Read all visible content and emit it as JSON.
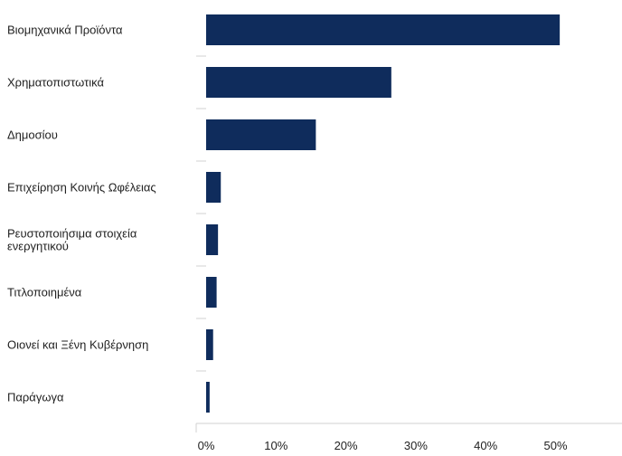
{
  "chart_data": {
    "type": "bar",
    "orientation": "horizontal",
    "categories": [
      "Βιομηχανικά Προϊόντα",
      "Χρηματοπιστωτικά",
      "Δημοσίου",
      "Επιχείρηση Κοινής Ωφέλειας",
      "Ρευστοποιήσιμα στοιχεία ενεργητικού",
      "Τιτλοποιημένα",
      "Οιονεί και Ξένη Κυβέρνηση",
      "Παράγωγα"
    ],
    "category_lines": [
      [
        "Βιομηχανικά Προϊόντα"
      ],
      [
        "Χρηματοπιστωτικά"
      ],
      [
        "Δημοσίου"
      ],
      [
        "Επιχείρηση Κοινής Ωφέλειας"
      ],
      [
        "Ρευστοποιήσιμα στοιχεία",
        "ενεργητικού"
      ],
      [
        "Τιτλοποιημένα"
      ],
      [
        "Οιονεί και Ξένη Κυβέρνηση"
      ],
      [
        "Παράγωγα"
      ]
    ],
    "values": [
      50.6,
      26.5,
      15.7,
      2.1,
      1.7,
      1.5,
      1.0,
      0.5
    ],
    "xlim": [
      0,
      60
    ],
    "xticks": [
      0,
      10,
      20,
      30,
      40,
      50
    ],
    "xtick_labels": [
      "0%",
      "10%",
      "20%",
      "30%",
      "40%",
      "50%"
    ],
    "unit": "%",
    "bar_color": "#0f2c5c",
    "grid": false,
    "title": "",
    "xlabel": "",
    "ylabel": ""
  }
}
